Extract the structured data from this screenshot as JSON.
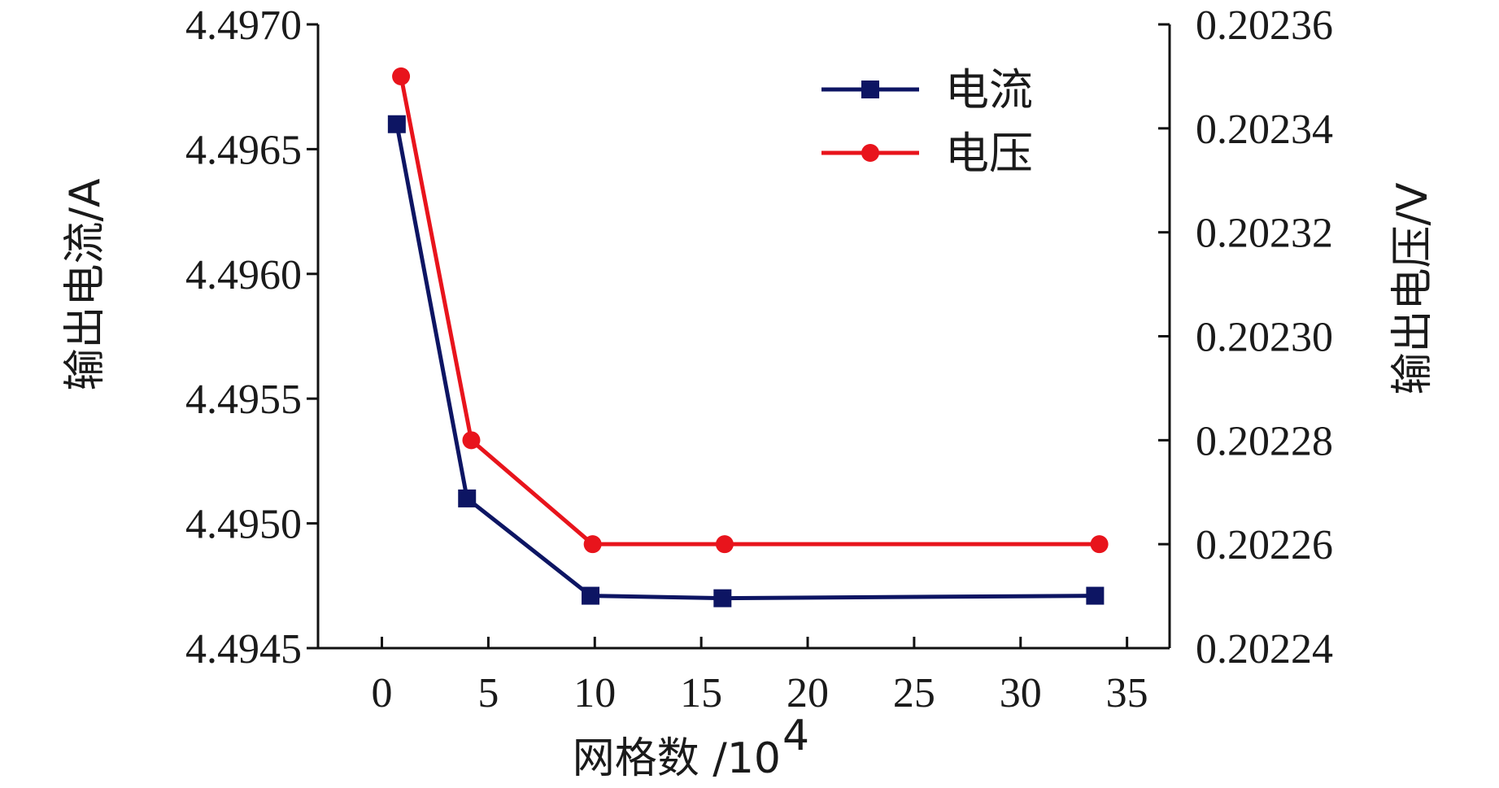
{
  "chart_data": {
    "type": "line",
    "xlabel_prefix": "网格数 /10",
    "xlabel_exp": "4",
    "ylabel_left": "输出电流/A",
    "ylabel_right": "输出电压/V",
    "xlim": [
      -3,
      37
    ],
    "xticks": [
      0,
      5,
      10,
      15,
      20,
      25,
      30,
      35
    ],
    "ylim_left": [
      4.4945,
      4.497
    ],
    "yticks_left": [
      "4.4945",
      "4.4950",
      "4.4955",
      "4.4960",
      "4.4965",
      "4.4970"
    ],
    "ylim_right": [
      0.20224,
      0.20236
    ],
    "yticks_right": [
      "0.20224",
      "0.20226",
      "0.20228",
      "0.20230",
      "0.20232",
      "0.20234",
      "0.20236"
    ],
    "legend_position": "top-right",
    "series": [
      {
        "name": "电流",
        "axis": "left",
        "color": "#0d1563",
        "marker": "square",
        "x": [
          0.7,
          4,
          9.8,
          16,
          33.5
        ],
        "y": [
          4.4966,
          4.4951,
          4.49471,
          4.4947,
          4.49471
        ]
      },
      {
        "name": "电压",
        "axis": "right",
        "color": "#e8141c",
        "marker": "circle",
        "x": [
          0.9,
          4.2,
          9.9,
          16.1,
          33.7
        ],
        "y": [
          0.20235,
          0.20228,
          0.20226,
          0.20226,
          0.20226
        ]
      }
    ]
  }
}
